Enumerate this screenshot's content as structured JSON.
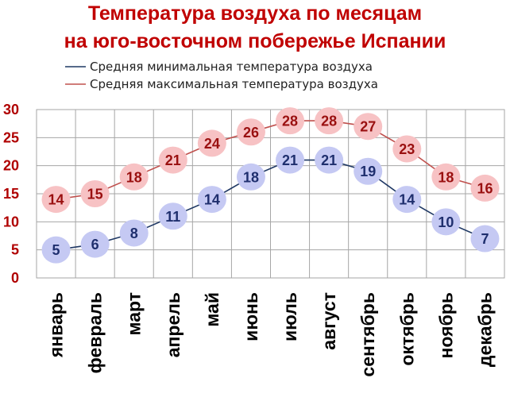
{
  "chart_data": {
    "type": "line",
    "title_lines": [
      "Температура воздуха по месяцам",
      "на юго-восточном побережье Испании"
    ],
    "categories": [
      "январь",
      "февраль",
      "март",
      "апрель",
      "май",
      "июнь",
      "июль",
      "август",
      "сентябрь",
      "октябрь",
      "ноябрь",
      "декабрь"
    ],
    "series": [
      {
        "name": "Средняя минимальная температура воздуха",
        "values": [
          5,
          6,
          8,
          11,
          14,
          18,
          21,
          21,
          19,
          14,
          10,
          7
        ],
        "line_color": "#1f3864",
        "marker_color": "#c5c9f3"
      },
      {
        "name": "Средняя максимальная температура воздуха",
        "values": [
          14,
          15,
          18,
          21,
          24,
          26,
          28,
          28,
          27,
          23,
          18,
          16
        ],
        "line_color": "#c0504d",
        "marker_color": "#f7c2c4"
      }
    ],
    "ylim": [
      0,
      30
    ],
    "yticks": [
      "0",
      "5",
      "10",
      "15",
      "20",
      "25",
      "30"
    ],
    "grid": true,
    "legend_position": "top"
  }
}
